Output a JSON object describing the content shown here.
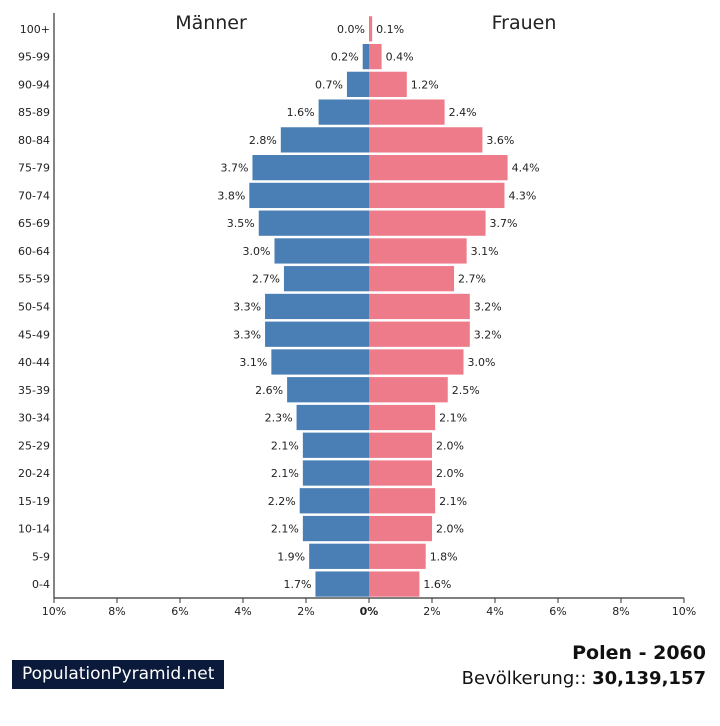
{
  "chart_data": {
    "type": "bar",
    "subtype": "population-pyramid",
    "left_label": "Männer",
    "right_label": "Frauen",
    "categories": [
      "100+",
      "95-99",
      "90-94",
      "85-89",
      "80-84",
      "75-79",
      "70-74",
      "65-69",
      "60-64",
      "55-59",
      "50-54",
      "45-49",
      "40-44",
      "35-39",
      "30-34",
      "25-29",
      "20-24",
      "15-19",
      "10-14",
      "5-9",
      "0-4"
    ],
    "series": [
      {
        "name": "Männer",
        "color": "#4a7fb5",
        "values": [
          0.0,
          0.2,
          0.7,
          1.6,
          2.8,
          3.7,
          3.8,
          3.5,
          3.0,
          2.7,
          3.3,
          3.3,
          3.1,
          2.6,
          2.3,
          2.1,
          2.1,
          2.2,
          2.1,
          1.9,
          1.7
        ],
        "labels": [
          "0.0%",
          "0.2%",
          "0.7%",
          "1.6%",
          "2.8%",
          "3.7%",
          "3.8%",
          "3.5%",
          "3.0%",
          "2.7%",
          "3.3%",
          "3.3%",
          "3.1%",
          "2.6%",
          "2.3%",
          "2.1%",
          "2.1%",
          "2.2%",
          "2.1%",
          "1.9%",
          "1.7%"
        ]
      },
      {
        "name": "Frauen",
        "color": "#ee7b8a",
        "values": [
          0.1,
          0.4,
          1.2,
          2.4,
          3.6,
          4.4,
          4.3,
          3.7,
          3.1,
          2.7,
          3.2,
          3.2,
          3.0,
          2.5,
          2.1,
          2.0,
          2.0,
          2.1,
          2.0,
          1.8,
          1.6
        ],
        "labels": [
          "0.1%",
          "0.4%",
          "1.2%",
          "2.4%",
          "3.6%",
          "4.4%",
          "4.3%",
          "3.7%",
          "3.1%",
          "2.7%",
          "3.2%",
          "3.2%",
          "3.0%",
          "2.5%",
          "2.1%",
          "2.0%",
          "2.0%",
          "2.1%",
          "2.0%",
          "1.8%",
          "1.6%"
        ]
      }
    ],
    "xlim": [
      -10,
      10
    ],
    "x_ticks": [
      "10%",
      "8%",
      "6%",
      "4%",
      "2%",
      "0%",
      "2%",
      "4%",
      "6%",
      "8%",
      "10%"
    ],
    "grid": false
  },
  "brand": "PopulationPyramid.net",
  "country_title": "Polen - 2060",
  "population_label": "Bevölkerung::",
  "population_value": "30,139,157"
}
